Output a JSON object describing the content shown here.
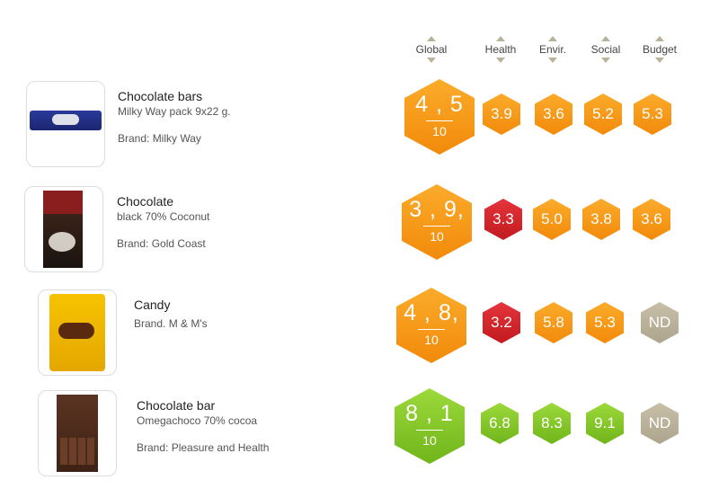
{
  "columns": [
    {
      "key": "global",
      "label": "Global"
    },
    {
      "key": "health",
      "label": "Health"
    },
    {
      "key": "envir",
      "label": "Envir."
    },
    {
      "key": "social",
      "label": "Social"
    },
    {
      "key": "budget",
      "label": "Budget"
    }
  ],
  "products": [
    {
      "category": "Chocolate bars",
      "description": "Milky Way pack 9x22 g.",
      "brand": "Brand: Milky Way",
      "image_icon": "milky-way-bar-photo",
      "global": {
        "score": "4 , 5",
        "denominator": "10",
        "rating": "orange"
      },
      "scores": [
        {
          "value": "3.9",
          "rating": "orange"
        },
        {
          "value": "3.6",
          "rating": "orange"
        },
        {
          "value": "5.2",
          "rating": "orange"
        },
        {
          "value": "5.3",
          "rating": "orange"
        }
      ]
    },
    {
      "category": "Chocolate",
      "description": "black 70% Coconut",
      "brand": "Brand: Gold Coast",
      "image_icon": "cote-dor-chocolate-photo",
      "global": {
        "score": "3 , 9,",
        "denominator": "10",
        "rating": "orange"
      },
      "scores": [
        {
          "value": "3.3",
          "rating": "red"
        },
        {
          "value": "5.0",
          "rating": "orange"
        },
        {
          "value": "3.8",
          "rating": "orange"
        },
        {
          "value": "3.6",
          "rating": "orange"
        }
      ]
    },
    {
      "category": "Candy",
      "description": "",
      "brand": "Brand. M & M's",
      "image_icon": "mms-bag-photo",
      "global": {
        "score": "4 , 8,",
        "denominator": "10",
        "rating": "orange"
      },
      "scores": [
        {
          "value": "3.2",
          "rating": "red"
        },
        {
          "value": "5.8",
          "rating": "orange"
        },
        {
          "value": "5.3",
          "rating": "orange"
        },
        {
          "value": "ND",
          "rating": "nd"
        }
      ]
    },
    {
      "category": "Chocolate bar",
      "description": "Omegachoco 70% cocoa",
      "brand": "Brand: Pleasure and Health",
      "image_icon": "omegachoco-bar-photo",
      "global": {
        "score": "8 , 1",
        "denominator": "10",
        "rating": "green"
      },
      "scores": [
        {
          "value": "6.8",
          "rating": "green"
        },
        {
          "value": "8.3",
          "rating": "green"
        },
        {
          "value": "9.1",
          "rating": "green"
        },
        {
          "value": "ND",
          "rating": "nd"
        }
      ]
    }
  ],
  "colors": {
    "orange": "#f59a15",
    "red": "#d0242a",
    "green": "#86c72a",
    "nd": "#b8af98"
  }
}
